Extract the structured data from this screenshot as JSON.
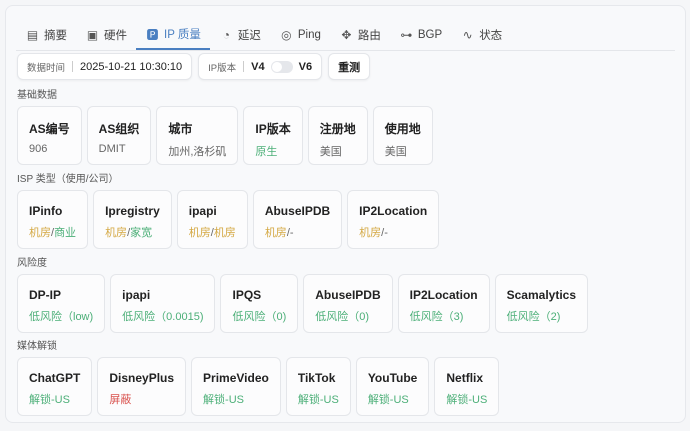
{
  "colors": {
    "accent": "#4a7fc1",
    "grey": "#666666",
    "green": "#4caf78",
    "yellow": "#d4a843",
    "red": "#d9534f"
  },
  "tabs": [
    {
      "label": "摘要",
      "icon": "summary-icon",
      "glyph": "▤"
    },
    {
      "label": "硬件",
      "icon": "chip-icon",
      "glyph": "▣"
    },
    {
      "label": "IP 质量",
      "icon": "ip-icon",
      "glyph": "🅿",
      "active": true
    },
    {
      "label": "延迟",
      "icon": "clock-icon",
      "glyph": "◔"
    },
    {
      "label": "Ping",
      "icon": "globe-icon",
      "glyph": "◎"
    },
    {
      "label": "路由",
      "icon": "route-icon",
      "glyph": "✥"
    },
    {
      "label": "BGP",
      "icon": "network-icon",
      "glyph": "⊶"
    },
    {
      "label": "状态",
      "icon": "pulse-icon",
      "glyph": "∿"
    }
  ],
  "toolbar": {
    "time_label": "数据时间",
    "time_value": "2025-10-21 10:30:10",
    "ipver_label": "IP版本",
    "v4": "V4",
    "v6": "V6",
    "v6_enabled": false,
    "retest": "重测"
  },
  "sections": [
    {
      "title": "基础数据",
      "cards": [
        {
          "title": "AS编号",
          "value": [
            {
              "text": "906",
              "color": "grey"
            }
          ]
        },
        {
          "title": "AS组织",
          "value": [
            {
              "text": "DMIT",
              "color": "grey"
            }
          ]
        },
        {
          "title": "城市",
          "value": [
            {
              "text": "加州,洛杉矶",
              "color": "grey"
            }
          ]
        },
        {
          "title": "IP版本",
          "value": [
            {
              "text": "原生",
              "color": "green"
            }
          ]
        },
        {
          "title": "注册地",
          "value": [
            {
              "text": "美国",
              "color": "grey"
            }
          ]
        },
        {
          "title": "使用地",
          "value": [
            {
              "text": "美国",
              "color": "grey"
            }
          ]
        }
      ]
    },
    {
      "title": "ISP 类型（使用/公司）",
      "cards": [
        {
          "title": "IPinfo",
          "value": [
            {
              "text": "机房",
              "color": "yellow"
            },
            {
              "text": "/",
              "color": "grey"
            },
            {
              "text": "商业",
              "color": "green"
            }
          ]
        },
        {
          "title": "Ipregistry",
          "value": [
            {
              "text": "机房",
              "color": "yellow"
            },
            {
              "text": "/",
              "color": "grey"
            },
            {
              "text": "家宽",
              "color": "green"
            }
          ]
        },
        {
          "title": "ipapi",
          "value": [
            {
              "text": "机房",
              "color": "yellow"
            },
            {
              "text": "/",
              "color": "grey"
            },
            {
              "text": "机房",
              "color": "yellow"
            }
          ]
        },
        {
          "title": "AbuseIPDB",
          "value": [
            {
              "text": "机房",
              "color": "yellow"
            },
            {
              "text": "/-",
              "color": "grey"
            }
          ]
        },
        {
          "title": "IP2Location",
          "value": [
            {
              "text": "机房",
              "color": "yellow"
            },
            {
              "text": "/-",
              "color": "grey"
            }
          ]
        }
      ]
    },
    {
      "title": "风险度",
      "cards": [
        {
          "title": "DP-IP",
          "value": [
            {
              "text": "低风险（low)",
              "color": "green"
            }
          ]
        },
        {
          "title": "ipapi",
          "value": [
            {
              "text": "低风险（0.0015)",
              "color": "green"
            }
          ]
        },
        {
          "title": "IPQS",
          "value": [
            {
              "text": "低风险（0)",
              "color": "green"
            }
          ]
        },
        {
          "title": "AbuseIPDB",
          "value": [
            {
              "text": "低风险（0)",
              "color": "green"
            }
          ]
        },
        {
          "title": "IP2Location",
          "value": [
            {
              "text": "低风险（3)",
              "color": "green"
            }
          ]
        },
        {
          "title": "Scamalytics",
          "value": [
            {
              "text": "低风险（2)",
              "color": "green"
            }
          ]
        }
      ]
    },
    {
      "title": "媒体解锁",
      "cards": [
        {
          "title": "ChatGPT",
          "value": [
            {
              "text": "解锁-US",
              "color": "green"
            }
          ]
        },
        {
          "title": "DisneyPlus",
          "value": [
            {
              "text": "屏蔽",
              "color": "red"
            }
          ]
        },
        {
          "title": "PrimeVideo",
          "value": [
            {
              "text": "解锁-US",
              "color": "green"
            }
          ]
        },
        {
          "title": "TikTok",
          "value": [
            {
              "text": "解锁-US",
              "color": "green"
            }
          ]
        },
        {
          "title": "YouTube",
          "value": [
            {
              "text": "解锁-US",
              "color": "green"
            }
          ]
        },
        {
          "title": "Netflix",
          "value": [
            {
              "text": "解锁-US",
              "color": "green"
            }
          ]
        }
      ]
    }
  ]
}
